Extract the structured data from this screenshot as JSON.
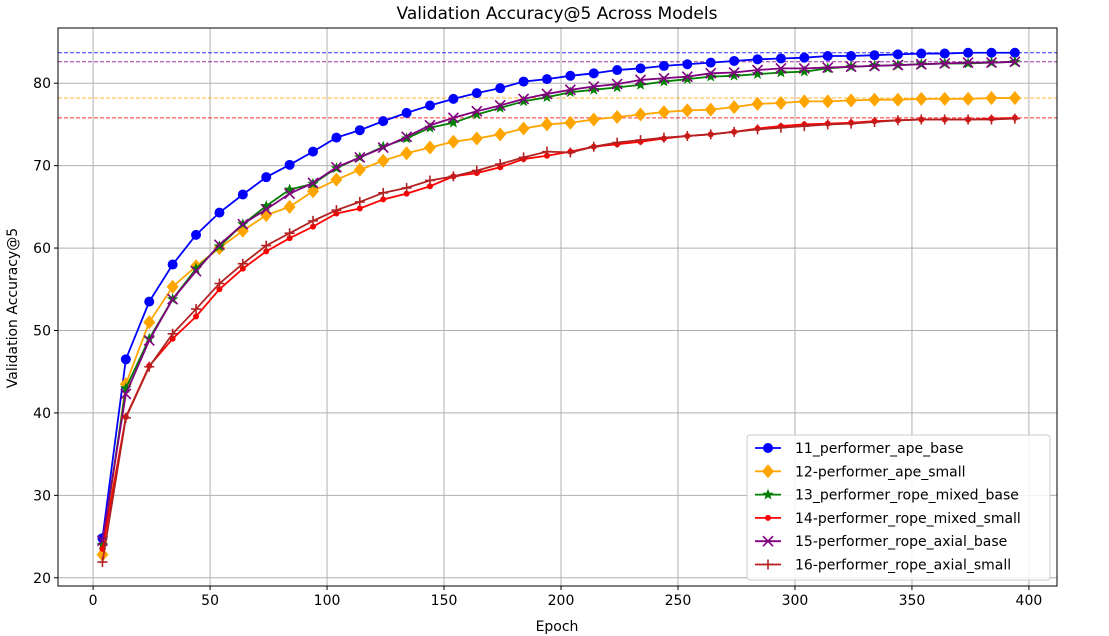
{
  "chart_data": {
    "type": "line",
    "title": "Validation Accuracy@5 Across Models",
    "xlabel": "Epoch",
    "ylabel": "Validation Accuracy@5",
    "xlim": [
      -15,
      412
    ],
    "ylim": [
      19,
      86.7
    ],
    "xticks": [
      0,
      50,
      100,
      150,
      200,
      250,
      300,
      350,
      400
    ],
    "yticks": [
      20,
      30,
      40,
      50,
      60,
      70,
      80
    ],
    "grid": true,
    "legend_position": "lower right",
    "x": [
      4,
      14,
      24,
      34,
      44,
      54,
      64,
      74,
      84,
      94,
      104,
      114,
      124,
      134,
      144,
      154,
      164,
      174,
      184,
      194,
      204,
      214,
      224,
      234,
      244,
      254,
      264,
      274,
      284,
      294,
      304,
      314,
      324,
      334,
      344,
      354,
      364,
      374,
      384,
      394
    ],
    "series": [
      {
        "name": "11_performer_ape_base",
        "color": "#0000ff",
        "marker": "circle",
        "hline": 83.7,
        "values": [
          24.8,
          46.5,
          53.5,
          58.0,
          61.6,
          64.3,
          66.5,
          68.6,
          70.1,
          71.7,
          73.4,
          74.3,
          75.4,
          76.4,
          77.3,
          78.1,
          78.8,
          79.4,
          80.2,
          80.5,
          80.9,
          81.2,
          81.6,
          81.8,
          82.1,
          82.3,
          82.5,
          82.7,
          82.9,
          83.0,
          83.1,
          83.3,
          83.3,
          83.4,
          83.5,
          83.6,
          83.6,
          83.7,
          83.7,
          83.7
        ]
      },
      {
        "name": "12-performer_ape_small",
        "color": "#ffa500",
        "marker": "diamond",
        "hline": 78.2,
        "values": [
          22.8,
          43.5,
          51.0,
          55.3,
          57.8,
          60.0,
          62.1,
          64.0,
          65.0,
          66.9,
          68.3,
          69.5,
          70.6,
          71.5,
          72.2,
          72.9,
          73.3,
          73.8,
          74.5,
          75.0,
          75.2,
          75.6,
          75.9,
          76.2,
          76.5,
          76.7,
          76.8,
          77.1,
          77.5,
          77.6,
          77.8,
          77.8,
          77.9,
          78.0,
          78.0,
          78.1,
          78.1,
          78.1,
          78.2,
          78.2
        ]
      },
      {
        "name": "13_performer_rope_mixed_base",
        "color": "#008000",
        "marker": "star",
        "hline": null,
        "values": [
          24.0,
          43.0,
          49.0,
          53.8,
          57.5,
          60.2,
          62.9,
          65.1,
          67.1,
          67.8,
          69.7,
          71.0,
          72.3,
          73.3,
          74.6,
          75.2,
          76.2,
          77.0,
          77.8,
          78.3,
          78.9,
          79.2,
          79.5,
          79.8,
          80.2,
          80.5,
          80.8,
          80.9,
          81.1,
          81.3,
          81.4,
          81.8,
          82.0,
          82.1,
          82.2,
          82.3,
          82.4,
          82.4,
          82.5,
          82.6
        ]
      },
      {
        "name": "14-performer_rope_mixed_small",
        "color": "#ff0000",
        "marker": "small-circle",
        "hline": 75.8,
        "values": [
          23.5,
          39.5,
          45.7,
          49.0,
          51.7,
          55.0,
          57.5,
          59.6,
          61.2,
          62.6,
          64.2,
          64.8,
          65.9,
          66.6,
          67.5,
          68.7,
          69.1,
          69.8,
          70.8,
          71.2,
          71.7,
          72.3,
          72.6,
          72.9,
          73.3,
          73.6,
          73.8,
          74.1,
          74.5,
          74.8,
          75.0,
          75.1,
          75.2,
          75.4,
          75.5,
          75.6,
          75.6,
          75.6,
          75.7,
          75.8
        ]
      },
      {
        "name": "15-performer_rope_axial_base",
        "color": "#800080",
        "marker": "x",
        "hline": 82.6,
        "values": [
          24.5,
          42.3,
          48.8,
          53.8,
          57.2,
          60.4,
          62.9,
          64.7,
          66.6,
          67.9,
          69.8,
          71.0,
          72.2,
          73.5,
          74.9,
          75.8,
          76.6,
          77.3,
          78.1,
          78.7,
          79.2,
          79.6,
          79.9,
          80.4,
          80.6,
          80.8,
          81.2,
          81.3,
          81.6,
          81.8,
          81.8,
          81.9,
          82.0,
          82.1,
          82.2,
          82.3,
          82.4,
          82.5,
          82.5,
          82.6
        ]
      },
      {
        "name": "16-performer_rope_axial_small",
        "color": "#b22222",
        "marker": "plus",
        "hline": null,
        "values": [
          21.9,
          39.4,
          45.6,
          49.6,
          52.6,
          55.7,
          58.1,
          60.3,
          61.8,
          63.3,
          64.6,
          65.6,
          66.7,
          67.3,
          68.2,
          68.7,
          69.4,
          70.2,
          71.0,
          71.7,
          71.6,
          72.3,
          72.8,
          73.1,
          73.4,
          73.6,
          73.8,
          74.1,
          74.4,
          74.6,
          74.8,
          75.0,
          75.1,
          75.3,
          75.5,
          75.6,
          75.6,
          75.6,
          75.6,
          75.7
        ]
      }
    ]
  }
}
